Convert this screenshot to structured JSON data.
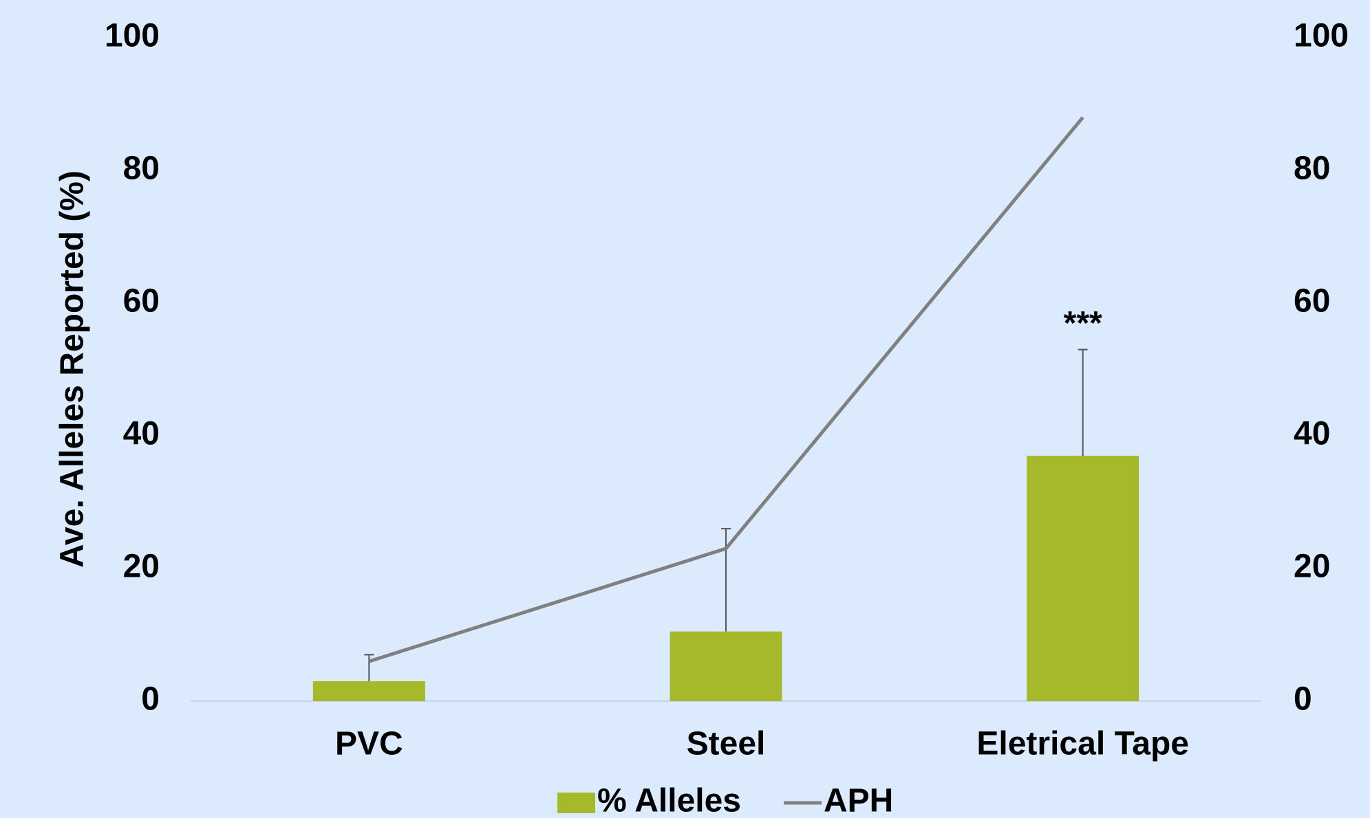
{
  "chart_data": {
    "type": "bar-line",
    "ylabel": "Ave. Alleles Reported (%)",
    "categories": [
      "PVC",
      "Steel",
      "Eletrical Tape"
    ],
    "series": [
      {
        "name": "% Alleles",
        "color": "#a6b92a",
        "values": [
          3,
          10.5,
          37
        ],
        "errors": [
          4,
          15.5,
          16
        ]
      },
      {
        "name": "APH",
        "color": "#808080",
        "values": [
          6,
          23,
          88
        ],
        "axis": "y2"
      }
    ],
    "annotations": [
      {
        "text": "***",
        "category": 2
      }
    ],
    "ylim": [
      0,
      100
    ],
    "yticks": [
      0,
      20,
      40,
      60,
      80,
      100
    ],
    "y2lim": [
      0,
      100
    ],
    "y2ticks": [
      0,
      20,
      40,
      60,
      80,
      100
    ]
  }
}
